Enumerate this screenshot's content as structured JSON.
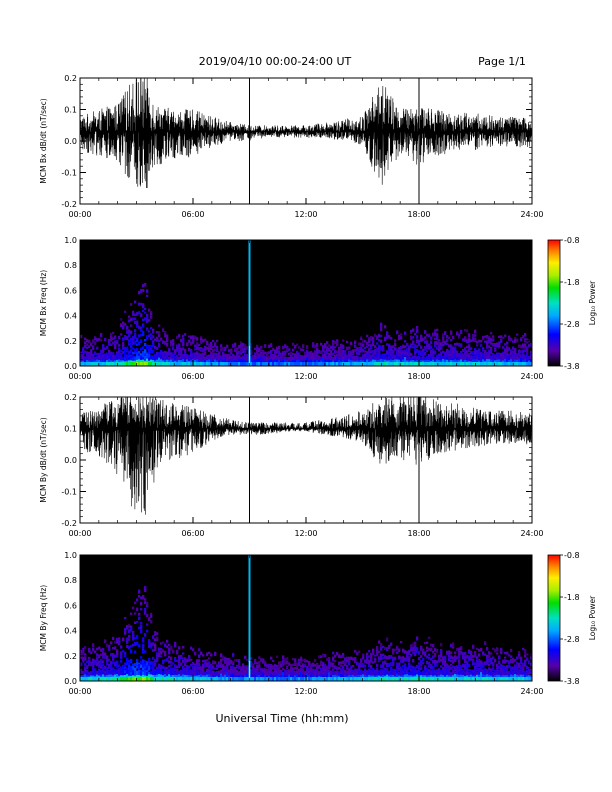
{
  "header": {
    "title": "2019/04/10  00:00-24:00 UT",
    "page": "Page 1/1"
  },
  "footer": {
    "xlabel": "Universal Time (hh:mm)"
  },
  "colors": {
    "trace": "#000000",
    "spectrogram_background": "#000000",
    "event_marker": "#000000"
  },
  "chart_data": [
    {
      "type": "line",
      "id": "bx-ts",
      "ylabel": "MCM Bx dB/dt (nT/sec)",
      "xlim_hours": [
        0,
        24
      ],
      "ylim": [
        -0.2,
        0.2
      ],
      "xticks": [
        "00:00",
        "06:00",
        "12:00",
        "18:00",
        "24:00"
      ],
      "yticks": [
        "-0.2",
        "-0.1",
        "0.0",
        "0.1",
        "0.2"
      ],
      "event_markers_hours": [
        9.0,
        18.0
      ],
      "envelope": {
        "hours": [
          0,
          1,
          2,
          3,
          3.5,
          4,
          5,
          6,
          7,
          8,
          9,
          10,
          11,
          12,
          13,
          14,
          15,
          16,
          17,
          18,
          19,
          20,
          21,
          22,
          23,
          24
        ],
        "center": [
          0.03,
          0.03,
          0.03,
          0.03,
          0.03,
          0.03,
          0.03,
          0.03,
          0.03,
          0.03,
          0.03,
          0.03,
          0.03,
          0.03,
          0.03,
          0.03,
          0.03,
          0.03,
          0.03,
          0.03,
          0.03,
          0.03,
          0.03,
          0.03,
          0.03,
          0.03
        ],
        "upper": [
          0.08,
          0.1,
          0.12,
          0.22,
          0.22,
          0.12,
          0.1,
          0.1,
          0.08,
          0.06,
          0.05,
          0.05,
          0.05,
          0.05,
          0.06,
          0.07,
          0.08,
          0.2,
          0.1,
          0.12,
          0.1,
          0.09,
          0.09,
          0.08,
          0.08,
          0.07
        ],
        "lower": [
          -0.03,
          -0.05,
          -0.08,
          -0.15,
          -0.16,
          -0.08,
          -0.06,
          -0.05,
          -0.02,
          0.0,
          0.0,
          0.01,
          0.01,
          0.01,
          0.01,
          0.0,
          -0.02,
          -0.15,
          -0.05,
          -0.08,
          -0.05,
          -0.03,
          -0.03,
          -0.02,
          -0.02,
          -0.02
        ]
      }
    },
    {
      "type": "heatmap",
      "id": "bx-spec",
      "ylabel": "MCM Bx Freq (Hz)",
      "xlim_hours": [
        0,
        24
      ],
      "ylim": [
        0.0,
        1.0
      ],
      "xticks": [
        "00:00",
        "06:00",
        "12:00",
        "18:00",
        "24:00"
      ],
      "yticks": [
        "0.0",
        "0.2",
        "0.4",
        "0.6",
        "0.8",
        "1.0"
      ],
      "colorbar": {
        "label": "Log₁₀ Power",
        "range": [
          -3.8,
          -0.8
        ],
        "ticks": [
          "-0.8",
          "-1.8",
          "-2.8",
          "-3.8"
        ]
      },
      "activity": {
        "hours": [
          0,
          1,
          2,
          3,
          3.5,
          4,
          5,
          6,
          7,
          8,
          9,
          10,
          11,
          12,
          13,
          14,
          15,
          16,
          17,
          18,
          19,
          20,
          21,
          22,
          23,
          24
        ],
        "level": [
          0.35,
          0.4,
          0.5,
          0.9,
          1.0,
          0.55,
          0.4,
          0.4,
          0.3,
          0.25,
          0.2,
          0.2,
          0.2,
          0.2,
          0.25,
          0.3,
          0.35,
          0.55,
          0.45,
          0.5,
          0.45,
          0.45,
          0.45,
          0.4,
          0.4,
          0.35
        ]
      },
      "broadband_spike_hours": [
        9.0
      ]
    },
    {
      "type": "line",
      "id": "by-ts",
      "ylabel": "MCM By dB/dt (nT/sec)",
      "xlim_hours": [
        0,
        24
      ],
      "ylim": [
        -0.2,
        0.2
      ],
      "xticks": [
        "00:00",
        "06:00",
        "12:00",
        "18:00",
        "24:00"
      ],
      "yticks": [
        "-0.2",
        "-0.1",
        "0.0",
        "0.1",
        "0.2"
      ],
      "event_markers_hours": [
        9.0,
        18.0
      ],
      "envelope": {
        "hours": [
          0,
          1,
          2,
          3,
          3.5,
          4,
          5,
          6,
          7,
          8,
          9,
          10,
          11,
          12,
          13,
          14,
          15,
          16,
          17,
          18,
          19,
          20,
          21,
          22,
          23,
          24
        ],
        "center": [
          0.1,
          0.1,
          0.1,
          0.1,
          0.1,
          0.1,
          0.1,
          0.1,
          0.1,
          0.1,
          0.1,
          0.1,
          0.1,
          0.1,
          0.1,
          0.1,
          0.1,
          0.1,
          0.1,
          0.1,
          0.1,
          0.1,
          0.1,
          0.1,
          0.1,
          0.1
        ],
        "upper": [
          0.15,
          0.17,
          0.2,
          0.22,
          0.22,
          0.2,
          0.18,
          0.17,
          0.15,
          0.13,
          0.12,
          0.12,
          0.12,
          0.12,
          0.13,
          0.14,
          0.16,
          0.2,
          0.2,
          0.22,
          0.19,
          0.18,
          0.17,
          0.16,
          0.16,
          0.15
        ],
        "lower": [
          0.04,
          0.0,
          -0.05,
          -0.2,
          -0.2,
          -0.05,
          0.0,
          0.02,
          0.06,
          0.08,
          0.08,
          0.08,
          0.09,
          0.09,
          0.08,
          0.07,
          0.05,
          -0.02,
          0.0,
          -0.02,
          0.02,
          0.03,
          0.04,
          0.05,
          0.05,
          0.05
        ]
      }
    },
    {
      "type": "heatmap",
      "id": "by-spec",
      "ylabel": "MCM By Freq (Hz)",
      "xlim_hours": [
        0,
        24
      ],
      "ylim": [
        0.0,
        1.0
      ],
      "xticks": [
        "00:00",
        "06:00",
        "12:00",
        "18:00",
        "24:00"
      ],
      "yticks": [
        "0.0",
        "0.2",
        "0.4",
        "0.6",
        "0.8",
        "1.0"
      ],
      "colorbar": {
        "label": "Log₁₀ Power",
        "range": [
          -3.8,
          -0.8
        ],
        "ticks": [
          "-0.8",
          "-1.8",
          "-2.8",
          "-3.8"
        ]
      },
      "activity": {
        "hours": [
          0,
          1,
          2,
          3,
          3.5,
          4,
          5,
          6,
          7,
          8,
          9,
          10,
          11,
          12,
          13,
          14,
          15,
          16,
          17,
          18,
          19,
          20,
          21,
          22,
          23,
          24
        ],
        "level": [
          0.45,
          0.5,
          0.6,
          1.0,
          1.0,
          0.6,
          0.5,
          0.45,
          0.35,
          0.3,
          0.25,
          0.25,
          0.25,
          0.25,
          0.3,
          0.35,
          0.4,
          0.55,
          0.5,
          0.6,
          0.5,
          0.5,
          0.5,
          0.45,
          0.45,
          0.4
        ]
      },
      "broadband_spike_hours": [
        9.0
      ]
    }
  ]
}
